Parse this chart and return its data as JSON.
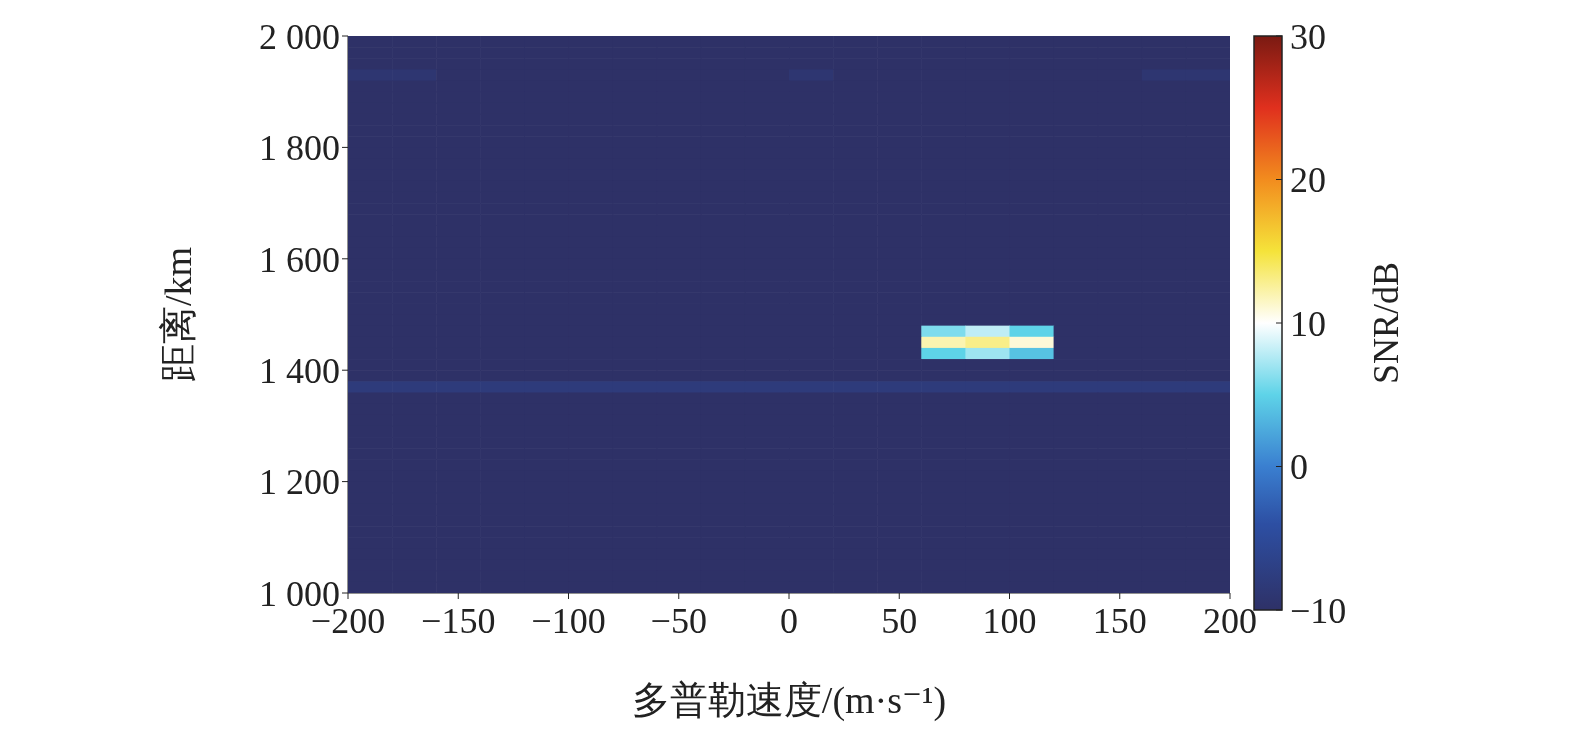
{
  "chart_data": {
    "type": "heatmap",
    "xlabel": "多普勒速度/(m·s⁻¹)",
    "ylabel": "距离/km",
    "clabel": "SNR/dB",
    "xlim": [
      -200,
      200
    ],
    "ylim": [
      1000,
      2000
    ],
    "xticks": [
      {
        "value": -200,
        "label": "−200"
      },
      {
        "value": -150,
        "label": "−150"
      },
      {
        "value": -100,
        "label": "−100"
      },
      {
        "value": -50,
        "label": "−50"
      },
      0,
      50,
      100,
      150,
      200
    ],
    "yticks": [
      {
        "value": 1000,
        "label": "1 000"
      },
      {
        "value": 1200,
        "label": "1 200"
      },
      {
        "value": 1400,
        "label": "1 400"
      },
      {
        "value": 1600,
        "label": "1 600"
      },
      {
        "value": 1800,
        "label": "1 800"
      },
      {
        "value": 2000,
        "label": "2 000"
      }
    ],
    "clim": [
      -10,
      30
    ],
    "cticks": [
      {
        "value": -10,
        "label": "−10"
      },
      0,
      10,
      20,
      30
    ],
    "cells": [
      [
        -10,
        -10,
        -10,
        -10,
        -10,
        -10,
        -10,
        -10,
        -10,
        -10,
        -10,
        -10,
        -10,
        -10,
        -10,
        -10,
        -10,
        -10,
        -10,
        -10
      ],
      [
        -10,
        -10,
        -10,
        -10,
        -10,
        -10,
        -10,
        -10,
        -10,
        -10,
        -10,
        -10,
        -10,
        -10,
        -10,
        -10,
        -10,
        -10,
        -10,
        -10
      ],
      [
        -10,
        -10,
        -10,
        -10,
        -10,
        -10,
        -10,
        -10,
        -10,
        -10,
        -10,
        -10,
        -10,
        -10,
        -10,
        -10,
        -10,
        -10,
        -10,
        -10
      ],
      [
        -9,
        -9,
        -10,
        -10,
        -10,
        -10,
        -10,
        -10,
        -10,
        -10,
        -9,
        -10,
        -10,
        -10,
        -10,
        -10,
        -10,
        -10,
        -9,
        -9
      ],
      [
        -10,
        -10,
        -10,
        -10,
        -10,
        -10,
        -10,
        -10,
        -10,
        -10,
        -10,
        -10,
        -10,
        -10,
        -10,
        -10,
        -10,
        -10,
        -10,
        -10
      ],
      [
        -10,
        -10,
        -10,
        -10,
        -10,
        -10,
        -10,
        -10,
        -10,
        -10,
        -10,
        -10,
        -10,
        -10,
        -10,
        -10,
        -10,
        -10,
        -10,
        -10
      ],
      [
        -10,
        -10,
        -10,
        -10,
        -10,
        -10,
        -10,
        -10,
        -10,
        -10,
        -10,
        -10,
        -10,
        -10,
        -10,
        -10,
        -10,
        -10,
        -10,
        -10
      ],
      [
        -10,
        -10,
        -10,
        -10,
        -10,
        -10,
        -10,
        -10,
        -10,
        -10,
        -10,
        -10,
        -10,
        -10,
        -10,
        -10,
        -10,
        -10,
        -10,
        -10
      ],
      [
        -10,
        -10,
        -10,
        -10,
        -10,
        -10,
        -10,
        -10,
        -10,
        -10,
        -10,
        -10,
        -10,
        -10,
        -10,
        -10,
        -10,
        -10,
        -10,
        -10
      ],
      [
        -10,
        -10,
        -10,
        -10,
        -10,
        -10,
        -10,
        -10,
        -10,
        -10,
        -10,
        -10,
        -10,
        -10,
        -10,
        -10,
        -10,
        -10,
        -10,
        -10
      ],
      [
        -10,
        -10,
        -10,
        -10,
        -10,
        -10,
        -10,
        -10,
        -10,
        -10,
        -10,
        -10,
        -10,
        -10,
        -10,
        -10,
        -10,
        -10,
        -10,
        -10
      ],
      [
        -10,
        -10,
        -10,
        -10,
        -10,
        -10,
        -10,
        -10,
        -10,
        -10,
        -10,
        -10,
        -10,
        -10,
        -10,
        -10,
        -10,
        -10,
        -10,
        -10
      ],
      [
        -10,
        -10,
        -10,
        -10,
        -10,
        -10,
        -10,
        -10,
        -10,
        -10,
        -10,
        -10,
        -10,
        -10,
        -10,
        -10,
        -10,
        -10,
        -10,
        -10
      ],
      [
        -10,
        -10,
        -10,
        -10,
        -10,
        -10,
        -10,
        -10,
        -10,
        -10,
        -10,
        -10,
        -10,
        -10,
        -10,
        -10,
        -10,
        -10,
        -10,
        -10
      ],
      [
        -10,
        -10,
        -10,
        -10,
        -10,
        -10,
        -10,
        -10,
        -10,
        -10,
        -10,
        -10,
        -10,
        -10,
        -10,
        -10,
        -10,
        -10,
        -10,
        -10
      ],
      [
        -10,
        -10,
        -10,
        -10,
        -10,
        -10,
        -10,
        -10,
        -10,
        -10,
        -10,
        -10,
        -10,
        -10,
        -10,
        -10,
        -10,
        -10,
        -10,
        -10
      ],
      [
        -10,
        -10,
        -10,
        -10,
        -10,
        -10,
        -10,
        -10,
        -10,
        -10,
        -10,
        -10,
        -10,
        -10,
        -10,
        -10,
        -10,
        -10,
        -10,
        -10
      ],
      [
        -10,
        -10,
        -10,
        -10,
        -10,
        -10,
        -10,
        -10,
        -10,
        -10,
        -10,
        -10,
        -10,
        -10,
        -10,
        -10,
        -10,
        -10,
        -10,
        -10
      ],
      [
        -10,
        -10,
        -10,
        -10,
        -10,
        -10,
        -10,
        -10,
        -10,
        -10,
        -10,
        -10,
        -10,
        -10,
        -10,
        -10,
        -10,
        -10,
        -10,
        -10
      ],
      [
        -10,
        -10,
        -10,
        -10,
        -10,
        -10,
        -10,
        -10,
        -10,
        -10,
        -10,
        -10,
        -10,
        -10,
        -10,
        -10,
        -10,
        -10,
        -10,
        -10
      ],
      [
        -10,
        -10,
        -10,
        -10,
        -10,
        -10,
        -10,
        -10,
        -10,
        -10,
        -10,
        -10,
        -10,
        -10,
        -10,
        -10,
        -10,
        -10,
        -10,
        -10
      ],
      [
        -10,
        -10,
        -10,
        -10,
        -10,
        -10,
        -10,
        -10,
        -10,
        -10,
        -10,
        -10,
        -10,
        -10,
        -10,
        -10,
        -10,
        -10,
        -10,
        -10
      ],
      [
        -10,
        -10,
        -10,
        -10,
        -10,
        -10,
        -10,
        -10,
        -10,
        -10,
        -10,
        -10,
        -10,
        -10,
        -10,
        -10,
        -10,
        -10,
        -10,
        -10
      ],
      [
        -10,
        -10,
        -10,
        -10,
        -10,
        -10,
        -10,
        -10,
        -10,
        -10,
        -10,
        -10,
        -10,
        -10,
        -10,
        -10,
        -10,
        -10,
        -10,
        -10
      ],
      [
        -10,
        -10,
        -10,
        -10,
        -10,
        -10,
        -10,
        -10,
        -10,
        -10,
        -10,
        -10,
        -10,
        -10,
        -10,
        -10,
        -10,
        -10,
        -10,
        -10
      ],
      [
        -10,
        -10,
        -10,
        -10,
        -10,
        -10,
        -10,
        -10,
        -10,
        -10,
        -10,
        -10,
        -10,
        -10,
        -10,
        -10,
        -10,
        -10,
        -10,
        -10
      ],
      [
        -10,
        -10,
        -10,
        -10,
        -10,
        -10,
        -10,
        -10,
        -10,
        -10,
        -10,
        -10,
        -10,
        6,
        8,
        5,
        -10,
        -10,
        -10,
        -10
      ],
      [
        -10,
        -10,
        -10,
        -10,
        -10,
        -10,
        -10,
        -10,
        -10,
        -10,
        -10,
        -10,
        -10,
        12,
        13,
        11,
        -10,
        -10,
        -10,
        -10
      ],
      [
        -10,
        -10,
        -10,
        -10,
        -10,
        -10,
        -10,
        -10,
        -10,
        -10,
        -10,
        -10,
        -10,
        5,
        7,
        4,
        -10,
        -10,
        -10,
        -10
      ],
      [
        -10,
        -10,
        -10,
        -10,
        -10,
        -10,
        -10,
        -10,
        -10,
        -10,
        -10,
        -10,
        -10,
        -10,
        -10,
        -10,
        -10,
        -10,
        -10,
        -10
      ],
      [
        -10,
        -10,
        -10,
        -10,
        -10,
        -10,
        -10,
        -10,
        -10,
        -10,
        -10,
        -10,
        -10,
        -10,
        -10,
        -10,
        -10,
        -10,
        -10,
        -10
      ],
      [
        -8,
        -8,
        -8,
        -8,
        -8,
        -8,
        -8,
        -8,
        -8,
        -8,
        -8,
        -8,
        -8,
        -8,
        -8,
        -8,
        -8,
        -8,
        -8,
        -8
      ],
      [
        -10,
        -10,
        -10,
        -10,
        -10,
        -10,
        -10,
        -10,
        -10,
        -10,
        -10,
        -10,
        -10,
        -10,
        -10,
        -10,
        -10,
        -10,
        -10,
        -10
      ],
      [
        -10,
        -10,
        -10,
        -10,
        -10,
        -10,
        -10,
        -10,
        -10,
        -10,
        -10,
        -10,
        -10,
        -10,
        -10,
        -10,
        -10,
        -10,
        -10,
        -10
      ],
      [
        -10,
        -10,
        -10,
        -10,
        -10,
        -10,
        -10,
        -10,
        -10,
        -10,
        -10,
        -10,
        -10,
        -10,
        -10,
        -10,
        -10,
        -10,
        -10,
        -10
      ],
      [
        -10,
        -10,
        -10,
        -10,
        -10,
        -10,
        -10,
        -10,
        -10,
        -10,
        -10,
        -10,
        -10,
        -10,
        -10,
        -10,
        -10,
        -10,
        -10,
        -10
      ],
      [
        -10,
        -10,
        -10,
        -10,
        -10,
        -10,
        -10,
        -10,
        -10,
        -10,
        -10,
        -10,
        -10,
        -10,
        -10,
        -10,
        -10,
        -10,
        -10,
        -10
      ],
      [
        -10,
        -10,
        -10,
        -10,
        -10,
        -10,
        -10,
        -10,
        -10,
        -10,
        -10,
        -10,
        -10,
        -10,
        -10,
        -10,
        -10,
        -10,
        -10,
        -10
      ],
      [
        -10,
        -10,
        -10,
        -10,
        -10,
        -10,
        -10,
        -10,
        -10,
        -10,
        -10,
        -10,
        -10,
        -10,
        -10,
        -10,
        -10,
        -10,
        -10,
        -10
      ],
      [
        -10,
        -10,
        -10,
        -10,
        -10,
        -10,
        -10,
        -10,
        -10,
        -10,
        -10,
        -10,
        -10,
        -10,
        -10,
        -10,
        -10,
        -10,
        -10,
        -10
      ],
      [
        -10,
        -10,
        -10,
        -10,
        -10,
        -10,
        -10,
        -10,
        -10,
        -10,
        -10,
        -10,
        -10,
        -10,
        -10,
        -10,
        -10,
        -10,
        -10,
        -10
      ],
      [
        -10,
        -10,
        -10,
        -10,
        -10,
        -10,
        -10,
        -10,
        -10,
        -10,
        -10,
        -10,
        -10,
        -10,
        -10,
        -10,
        -10,
        -10,
        -10,
        -10
      ],
      [
        -10,
        -10,
        -10,
        -10,
        -10,
        -10,
        -10,
        -10,
        -10,
        -10,
        -10,
        -10,
        -10,
        -10,
        -10,
        -10,
        -10,
        -10,
        -10,
        -10
      ],
      [
        -10,
        -10,
        -10,
        -10,
        -10,
        -10,
        -10,
        -10,
        -10,
        -10,
        -10,
        -10,
        -10,
        -10,
        -10,
        -10,
        -10,
        -10,
        -10,
        -10
      ],
      [
        -10,
        -10,
        -10,
        -10,
        -10,
        -10,
        -10,
        -10,
        -10,
        -10,
        -10,
        -10,
        -10,
        -10,
        -10,
        -10,
        -10,
        -10,
        -10,
        -10
      ],
      [
        -10,
        -10,
        -10,
        -10,
        -10,
        -10,
        -10,
        -10,
        -10,
        -10,
        -10,
        -10,
        -10,
        -10,
        -10,
        -10,
        -10,
        -10,
        -10,
        -10
      ],
      [
        -10,
        -10,
        -10,
        -10,
        -10,
        -10,
        -10,
        -10,
        -10,
        -10,
        -10,
        -10,
        -10,
        -10,
        -10,
        -10,
        -10,
        -10,
        -10,
        -10
      ],
      [
        -10,
        -10,
        -10,
        -10,
        -10,
        -10,
        -10,
        -10,
        -10,
        -10,
        -10,
        -10,
        -10,
        -10,
        -10,
        -10,
        -10,
        -10,
        -10,
        -10
      ],
      [
        -10,
        -10,
        -10,
        -10,
        -10,
        -10,
        -10,
        -10,
        -10,
        -10,
        -10,
        -10,
        -10,
        -10,
        -10,
        -10,
        -10,
        -10,
        -10,
        -10
      ],
      [
        -10,
        -10,
        -10,
        -10,
        -10,
        -10,
        -10,
        -10,
        -10,
        -10,
        -10,
        -10,
        -10,
        -10,
        -10,
        -10,
        -10,
        -10,
        -10,
        -10
      ]
    ]
  }
}
